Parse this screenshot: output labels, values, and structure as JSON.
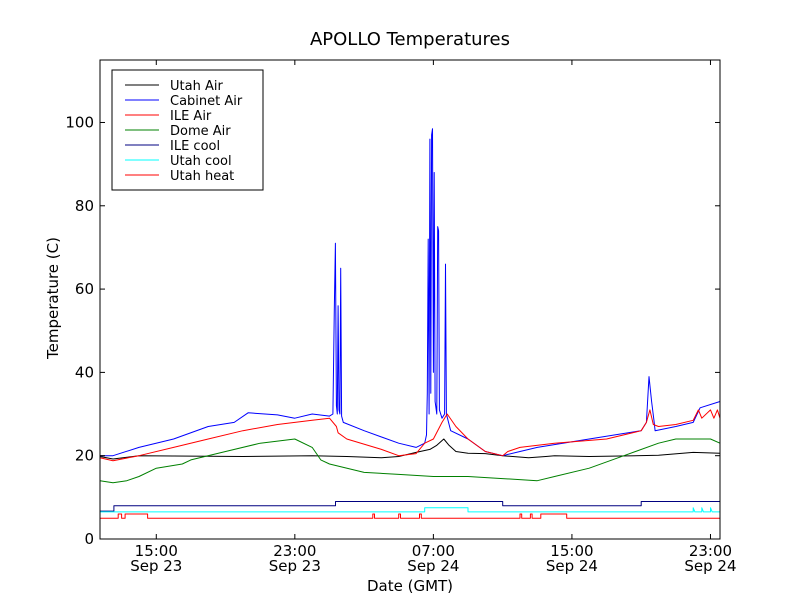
{
  "chart_data": {
    "type": "line",
    "title": "APOLLO Temperatures",
    "xlabel": "Date (GMT)",
    "ylabel": "Temperature (C)",
    "xlim": [
      11.75,
      47.55
    ],
    "ylim": [
      0,
      115
    ],
    "y_ticks": [
      0,
      20,
      40,
      60,
      80,
      100
    ],
    "x_ticks": [
      {
        "x": 15,
        "time": "15:00",
        "date": "Sep 23"
      },
      {
        "x": 23,
        "time": "23:00",
        "date": "Sep 23"
      },
      {
        "x": 31,
        "time": "07:00",
        "date": "Sep 24"
      },
      {
        "x": 39,
        "time": "15:00",
        "date": "Sep 24"
      },
      {
        "x": 47,
        "time": "23:00",
        "date": "Sep 24"
      }
    ],
    "grid": false,
    "legend_position": "top-left",
    "series": [
      {
        "name": "Utah Air",
        "color": "#000000",
        "points": [
          [
            11.75,
            19.8
          ],
          [
            12.5,
            19.2
          ],
          [
            14,
            20
          ],
          [
            17,
            19.9
          ],
          [
            20,
            19.8
          ],
          [
            24,
            20
          ],
          [
            26,
            19.8
          ],
          [
            28,
            19.5
          ],
          [
            29,
            19.8
          ],
          [
            30,
            20.8
          ],
          [
            30.8,
            21.5
          ],
          [
            31.2,
            22.5
          ],
          [
            31.6,
            24
          ],
          [
            31.9,
            22.5
          ],
          [
            32.3,
            21
          ],
          [
            33,
            20.6
          ],
          [
            34,
            20.5
          ],
          [
            35,
            20
          ],
          [
            36.5,
            19.5
          ],
          [
            37.5,
            19.8
          ],
          [
            38,
            20
          ],
          [
            40,
            19.8
          ],
          [
            44,
            20.1
          ],
          [
            46,
            20.8
          ],
          [
            47.55,
            20.6
          ]
        ]
      },
      {
        "name": "Cabinet Air",
        "color": "#0000ff",
        "points": [
          [
            11.75,
            20
          ],
          [
            12.5,
            20
          ],
          [
            14,
            22
          ],
          [
            16,
            24
          ],
          [
            18,
            27
          ],
          [
            19.5,
            28
          ],
          [
            20.3,
            30.3
          ],
          [
            22,
            29.8
          ],
          [
            23,
            29
          ],
          [
            24,
            30
          ],
          [
            25,
            29.5
          ],
          [
            25.2,
            30
          ],
          [
            25.28,
            55
          ],
          [
            25.34,
            71
          ],
          [
            25.4,
            32
          ],
          [
            25.45,
            30
          ],
          [
            25.5,
            56
          ],
          [
            25.55,
            31
          ],
          [
            25.6,
            30
          ],
          [
            25.65,
            65
          ],
          [
            25.7,
            29.5
          ],
          [
            25.8,
            28
          ],
          [
            27,
            26
          ],
          [
            29,
            23
          ],
          [
            30,
            22
          ],
          [
            30.5,
            23
          ],
          [
            30.6,
            25
          ],
          [
            30.65,
            35
          ],
          [
            30.7,
            72
          ],
          [
            30.75,
            30
          ],
          [
            30.8,
            96
          ],
          [
            30.85,
            35
          ],
          [
            30.9,
            97
          ],
          [
            30.95,
            98.5
          ],
          [
            31.0,
            40
          ],
          [
            31.05,
            88
          ],
          [
            31.1,
            33
          ],
          [
            31.2,
            30
          ],
          [
            31.25,
            75
          ],
          [
            31.3,
            74
          ],
          [
            31.35,
            31
          ],
          [
            31.5,
            29
          ],
          [
            31.65,
            30
          ],
          [
            31.7,
            66
          ],
          [
            31.75,
            30
          ],
          [
            32,
            26
          ],
          [
            33,
            24
          ],
          [
            34,
            21
          ],
          [
            35,
            20
          ],
          [
            36,
            21
          ],
          [
            37,
            22
          ],
          [
            40,
            24
          ],
          [
            43,
            26
          ],
          [
            43.3,
            28
          ],
          [
            43.45,
            39
          ],
          [
            43.6,
            33
          ],
          [
            43.75,
            28
          ],
          [
            43.8,
            26
          ],
          [
            45,
            27
          ],
          [
            46,
            28
          ],
          [
            46.4,
            31.5
          ],
          [
            47.55,
            33
          ],
          [
            47.55,
            30
          ]
        ]
      },
      {
        "name": "ILE Air",
        "color": "#ff0000",
        "points": [
          [
            11.75,
            19.5
          ],
          [
            12.5,
            18.8
          ],
          [
            14,
            20
          ],
          [
            16,
            22
          ],
          [
            18,
            24
          ],
          [
            20,
            26
          ],
          [
            22,
            27.5
          ],
          [
            24,
            28.5
          ],
          [
            25,
            29
          ],
          [
            25.4,
            27
          ],
          [
            25.5,
            25.5
          ],
          [
            26,
            24
          ],
          [
            28,
            21.5
          ],
          [
            29,
            20
          ],
          [
            30,
            20.5
          ],
          [
            30.5,
            23
          ],
          [
            31,
            24
          ],
          [
            31.5,
            28
          ],
          [
            31.8,
            30
          ],
          [
            32.3,
            27
          ],
          [
            33,
            24
          ],
          [
            34,
            21
          ],
          [
            35,
            20
          ],
          [
            35.3,
            21
          ],
          [
            36,
            22
          ],
          [
            38,
            23
          ],
          [
            41,
            24
          ],
          [
            43,
            26
          ],
          [
            43.3,
            28
          ],
          [
            43.5,
            31
          ],
          [
            43.7,
            27.5
          ],
          [
            44,
            27
          ],
          [
            45,
            27.5
          ],
          [
            46,
            28.5
          ],
          [
            46.3,
            31
          ],
          [
            46.5,
            29
          ],
          [
            47,
            31
          ],
          [
            47.2,
            29
          ],
          [
            47.4,
            31
          ],
          [
            47.55,
            29
          ]
        ]
      },
      {
        "name": "Dome Air",
        "color": "#008000",
        "points": [
          [
            11.75,
            14
          ],
          [
            12.5,
            13.5
          ],
          [
            13.3,
            14
          ],
          [
            14,
            15
          ],
          [
            15,
            17
          ],
          [
            16.5,
            18
          ],
          [
            17,
            19
          ],
          [
            19,
            21
          ],
          [
            21,
            23
          ],
          [
            23,
            24
          ],
          [
            24,
            22
          ],
          [
            24.5,
            19
          ],
          [
            25,
            18
          ],
          [
            27,
            16
          ],
          [
            29,
            15.5
          ],
          [
            31,
            15
          ],
          [
            33,
            15
          ],
          [
            35,
            14.5
          ],
          [
            37,
            14
          ],
          [
            38,
            15
          ],
          [
            40,
            17
          ],
          [
            42,
            20
          ],
          [
            44,
            23
          ],
          [
            45,
            24
          ],
          [
            47,
            24
          ],
          [
            47.55,
            23
          ]
        ]
      },
      {
        "name": "ILE cool",
        "color": "#000080",
        "points": [
          [
            11.75,
            6.7
          ],
          [
            12.55,
            6.7
          ],
          [
            12.55,
            8
          ],
          [
            25.35,
            8
          ],
          [
            25.35,
            9
          ],
          [
            35,
            9
          ],
          [
            35,
            8
          ],
          [
            43,
            8
          ],
          [
            43,
            9
          ],
          [
            47.55,
            9
          ]
        ]
      },
      {
        "name": "Utah cool",
        "color": "#00ffff",
        "points": [
          [
            11.75,
            6.5
          ],
          [
            30.5,
            6.5
          ],
          [
            30.5,
            7.5
          ],
          [
            33,
            7.5
          ],
          [
            33,
            6.5
          ],
          [
            46,
            6.5
          ],
          [
            46,
            7.5
          ],
          [
            46.1,
            6.5
          ],
          [
            46.5,
            6.5
          ],
          [
            46.5,
            7.5
          ],
          [
            46.6,
            6.5
          ],
          [
            47,
            6.5
          ],
          [
            47,
            7.5
          ],
          [
            47.1,
            6.5
          ],
          [
            47.55,
            6.5
          ]
        ]
      },
      {
        "name": "Utah heat",
        "color": "#ff0000",
        "points": [
          [
            11.75,
            5
          ],
          [
            12.8,
            5
          ],
          [
            12.8,
            6
          ],
          [
            13,
            6
          ],
          [
            13,
            5
          ],
          [
            13.2,
            5
          ],
          [
            13.2,
            6
          ],
          [
            14.5,
            6
          ],
          [
            14.5,
            5
          ],
          [
            27.5,
            5
          ],
          [
            27.5,
            6
          ],
          [
            27.6,
            6
          ],
          [
            27.6,
            5
          ],
          [
            29,
            5
          ],
          [
            29,
            6
          ],
          [
            29.1,
            6
          ],
          [
            29.1,
            5
          ],
          [
            30.2,
            5
          ],
          [
            30.2,
            6
          ],
          [
            30.3,
            6
          ],
          [
            30.3,
            5
          ],
          [
            36,
            5
          ],
          [
            36,
            6
          ],
          [
            36.1,
            6
          ],
          [
            36.1,
            5
          ],
          [
            36.6,
            5
          ],
          [
            36.6,
            6
          ],
          [
            36.7,
            6
          ],
          [
            36.7,
            5
          ],
          [
            37.2,
            5
          ],
          [
            37.2,
            6
          ],
          [
            38.7,
            6
          ],
          [
            38.7,
            5
          ],
          [
            47.55,
            5
          ]
        ]
      }
    ]
  }
}
